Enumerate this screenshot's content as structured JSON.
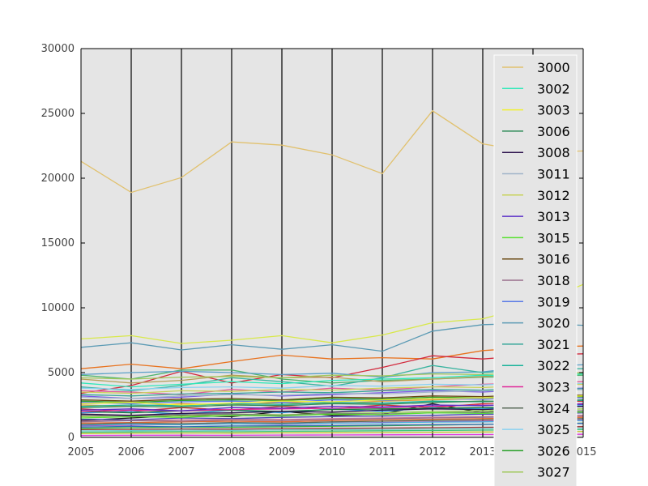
{
  "chart_data": {
    "type": "line",
    "title": "",
    "xlabel": "",
    "ylabel": "",
    "x": [
      2005,
      2006,
      2007,
      2008,
      2009,
      2010,
      2011,
      2012,
      2013,
      2014,
      2015
    ],
    "xlim": [
      2005,
      2015
    ],
    "ylim": [
      0,
      30000
    ],
    "x_ticks": [
      "2005",
      "2006",
      "2007",
      "2008",
      "2009",
      "2010",
      "2011",
      "2012",
      "2013",
      "2014",
      "2015"
    ],
    "y_ticks": [
      "0",
      "5000",
      "10000",
      "15000",
      "20000",
      "25000",
      "30000"
    ],
    "grid": "vertical lines at x ticks",
    "plot_background": "#e5e5e5",
    "legend_position": "right",
    "series": [
      {
        "name": "3000",
        "color": "#e1c16e",
        "values": [
          21300,
          18900,
          20050,
          22800,
          22550,
          21800,
          20350,
          25200,
          22650,
          22000,
          22100
        ]
      },
      {
        "name": "3002",
        "color": "#2ee8b9",
        "values": [
          4200,
          3900,
          4100,
          4300,
          4150,
          4400,
          4500,
          4600,
          4800,
          4700,
          4900
        ]
      },
      {
        "name": "3003",
        "color": "#f0f032",
        "values": [
          2600,
          2700,
          2500,
          2650,
          2800,
          2750,
          2900,
          3000,
          3050,
          3100,
          3200
        ]
      },
      {
        "name": "3006",
        "color": "#2e8b57",
        "values": [
          2300,
          2400,
          2350,
          2500,
          2450,
          2600,
          2550,
          2700,
          2800,
          2750,
          2900
        ]
      },
      {
        "name": "3008",
        "color": "#2a0f4a",
        "values": [
          1800,
          1700,
          1850,
          1900,
          2000,
          1950,
          2100,
          2200,
          2150,
          2300,
          2400
        ]
      },
      {
        "name": "3011",
        "color": "#a0b4c8",
        "values": [
          3100,
          3000,
          3200,
          3300,
          3250,
          3400,
          3350,
          3500,
          3600,
          3550,
          3700
        ]
      },
      {
        "name": "3012",
        "color": "#c8d25a",
        "values": [
          3500,
          3400,
          3600,
          3550,
          3700,
          3650,
          3800,
          3900,
          3850,
          4000,
          4100
        ]
      },
      {
        "name": "3013",
        "color": "#5a2ec8",
        "values": [
          2100,
          2200,
          2050,
          2300,
          2250,
          2400,
          2350,
          2500,
          2450,
          2600,
          2550
        ]
      },
      {
        "name": "3015",
        "color": "#5ae032",
        "values": [
          1500,
          1600,
          1550,
          1700,
          1650,
          1800,
          1750,
          1900,
          1850,
          2000,
          1950
        ]
      },
      {
        "name": "3016",
        "color": "#6b4a14",
        "values": [
          2900,
          2800,
          2950,
          3000,
          2900,
          3100,
          3050,
          3200,
          3150,
          3300,
          3250
        ]
      },
      {
        "name": "3018",
        "color": "#9a6e8c",
        "values": [
          1200,
          1300,
          1250,
          1350,
          1300,
          1400,
          1450,
          1500,
          1550,
          1600,
          1650
        ]
      },
      {
        "name": "3019",
        "color": "#5a7ae6",
        "values": [
          2700,
          2600,
          2750,
          2800,
          2700,
          2900,
          2850,
          3000,
          2950,
          3100,
          3050
        ]
      },
      {
        "name": "3020",
        "color": "#5a9ab4",
        "values": [
          6950,
          7300,
          6750,
          7150,
          6800,
          7150,
          6650,
          8200,
          8700,
          8800,
          8650
        ]
      },
      {
        "name": "3021",
        "color": "#3aa89a",
        "values": [
          3300,
          3200,
          3350,
          3400,
          3500,
          3450,
          3600,
          3700,
          3650,
          3800,
          3750
        ]
      },
      {
        "name": "3022",
        "color": "#1ab49a",
        "values": [
          2400,
          2500,
          2450,
          2600,
          2550,
          2700,
          2650,
          2800,
          2750,
          2900,
          2850
        ]
      },
      {
        "name": "3023",
        "color": "#e0289a",
        "values": [
          2000,
          2100,
          2050,
          2150,
          2200,
          2250,
          2300,
          2400,
          2500,
          2450,
          2600
        ]
      },
      {
        "name": "3024",
        "color": "#5a6a5a",
        "values": [
          1000,
          1100,
          1050,
          1150,
          1100,
          1200,
          1250,
          1300,
          1350,
          1400,
          1450
        ]
      },
      {
        "name": "3025",
        "color": "#8ad2f0",
        "values": [
          3800,
          3700,
          3850,
          3900,
          3800,
          4000,
          3950,
          4100,
          4050,
          4200,
          4150
        ]
      },
      {
        "name": "3026",
        "color": "#28a028",
        "values": [
          2800,
          2700,
          2850,
          2900,
          2850,
          3000,
          2950,
          3100,
          3050,
          3200,
          3150
        ]
      },
      {
        "name": "3027",
        "color": "#a0c85a",
        "values": [
          4600,
          4500,
          4650,
          4700,
          4600,
          4800,
          4750,
          4900,
          4850,
          5000,
          4950
        ]
      }
    ],
    "background_series": [
      {
        "color": "#d8e84a",
        "values": [
          7600,
          7850,
          7250,
          7500,
          7850,
          7300,
          7900,
          8850,
          9150,
          10200,
          11800
        ]
      },
      {
        "color": "#e8721e",
        "values": [
          5300,
          5650,
          5300,
          5850,
          6350,
          6050,
          6150,
          6050,
          6700,
          6950,
          7050
        ]
      },
      {
        "color": "#d2283c",
        "values": [
          3400,
          4000,
          5100,
          4200,
          4850,
          4600,
          5400,
          6300,
          6050,
          6350,
          6450
        ]
      },
      {
        "color": "#50b46e",
        "values": [
          4800,
          4500,
          5200,
          5200,
          4500,
          4200,
          4400,
          4500,
          4650,
          4700,
          4800
        ]
      },
      {
        "color": "#5aa0c8",
        "values": [
          4850,
          5000,
          5100,
          5000,
          4850,
          4950,
          4650,
          5000,
          5050,
          5500,
          5600
        ]
      },
      {
        "color": "#3ab4a0",
        "values": [
          3900,
          3600,
          4000,
          4600,
          4300,
          3950,
          4600,
          5550,
          5000,
          5250,
          5300
        ]
      },
      {
        "color": "#b4a05a",
        "values": [
          4500,
          4200,
          4400,
          4800,
          4600,
          4650,
          4300,
          4500,
          4700,
          4900,
          5000
        ]
      },
      {
        "color": "#e05a9a",
        "values": [
          3600,
          3500,
          3300,
          3700,
          3500,
          3800,
          3650,
          3900,
          4100,
          4200,
          4300
        ]
      },
      {
        "color": "#7a5ae6",
        "values": [
          3200,
          3000,
          3100,
          3350,
          3200,
          3300,
          3450,
          3600,
          3500,
          3700,
          3800
        ]
      },
      {
        "color": "#1a1a1a",
        "values": [
          1300,
          1500,
          1700,
          1600,
          2000,
          1700,
          1800,
          2600,
          1900,
          2500,
          2600
        ]
      },
      {
        "color": "#c83232",
        "values": [
          2200,
          2000,
          2300,
          2100,
          2400,
          2200,
          2500,
          2300,
          2600,
          2700,
          2800
        ]
      },
      {
        "color": "#32a0e0",
        "values": [
          1900,
          2000,
          1800,
          2100,
          1900,
          2200,
          2000,
          2300,
          2200,
          2400,
          2500
        ]
      },
      {
        "color": "#9ad24a",
        "values": [
          1600,
          1700,
          1650,
          1800,
          1750,
          1850,
          1900,
          2000,
          2050,
          2100,
          2200
        ]
      },
      {
        "color": "#e0a032",
        "values": [
          2500,
          2400,
          2600,
          2500,
          2700,
          2600,
          2800,
          2900,
          3000,
          3050,
          3150
        ]
      },
      {
        "color": "#4a4ab4",
        "values": [
          1400,
          1350,
          1500,
          1450,
          1550,
          1600,
          1650,
          1700,
          1800,
          1750,
          1900
        ]
      },
      {
        "color": "#b43ab4",
        "values": [
          900,
          950,
          1000,
          1050,
          1000,
          1100,
          1150,
          1200,
          1250,
          1300,
          1350
        ]
      },
      {
        "color": "#3ab43a",
        "values": [
          700,
          750,
          800,
          780,
          820,
          860,
          900,
          950,
          1000,
          1050,
          1100
        ]
      },
      {
        "color": "#e06a32",
        "values": [
          1100,
          1150,
          1200,
          1250,
          1200,
          1300,
          1350,
          1400,
          1450,
          1500,
          1550
        ]
      },
      {
        "color": "#6ac8c8",
        "values": [
          500,
          520,
          560,
          540,
          580,
          600,
          620,
          650,
          680,
          700,
          720
        ]
      },
      {
        "color": "#c8c832",
        "values": [
          300,
          320,
          340,
          330,
          350,
          360,
          380,
          400,
          420,
          440,
          460
        ]
      },
      {
        "color": "#326ab4",
        "values": [
          800,
          850,
          820,
          880,
          900,
          920,
          950,
          980,
          1000,
          1050,
          1080
        ]
      },
      {
        "color": "#a03a3a",
        "values": [
          600,
          620,
          650,
          640,
          680,
          700,
          720,
          750,
          780,
          800,
          830
        ]
      },
      {
        "color": "#3ac87a",
        "values": [
          400,
          420,
          450,
          440,
          470,
          490,
          510,
          530,
          560,
          580,
          600
        ]
      },
      {
        "color": "#e03ae0",
        "values": [
          150,
          160,
          170,
          165,
          180,
          190,
          200,
          210,
          220,
          230,
          240
        ]
      },
      {
        "color": "#7a7a7a",
        "values": [
          1700,
          1650,
          1750,
          1800,
          1700,
          1850,
          1800,
          1900,
          1950,
          2000,
          2050
        ]
      },
      {
        "color": "#1a7a3a",
        "values": [
          2000,
          1900,
          2050,
          2100,
          2000,
          2150,
          2200,
          2250,
          2300,
          2350,
          2400
        ]
      },
      {
        "color": "#d27a9a",
        "values": [
          1250,
          1300,
          1350,
          1400,
          1380,
          1450,
          1500,
          1550,
          1600,
          1650,
          1700
        ]
      },
      {
        "color": "#4ab4e0",
        "values": [
          950,
          1000,
          980,
          1050,
          1030,
          1100,
          1120,
          1180,
          1200,
          1250,
          1300
        ]
      }
    ]
  }
}
